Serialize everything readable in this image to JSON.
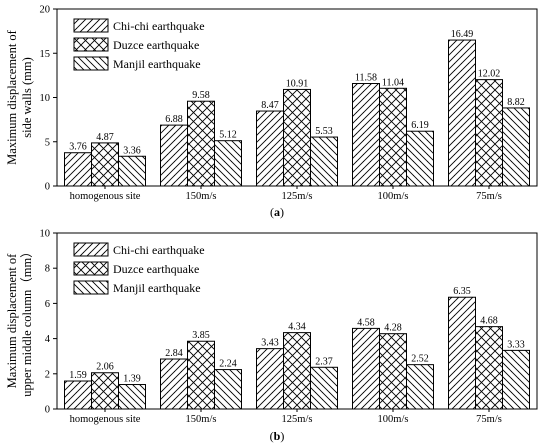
{
  "chart_data": [
    {
      "type": "bar",
      "subtitle": "(a)",
      "ylabel_lines": [
        "Maximum displacement of",
        "side walls (mm)"
      ],
      "ylim": [
        0,
        20
      ],
      "yticks": [
        0,
        5,
        10,
        15,
        20
      ],
      "categories": [
        "homogenous site",
        "150m/s",
        "125m/s",
        "100m/s",
        "75m/s"
      ],
      "series": [
        {
          "name": "Chi-chi earthquake",
          "pattern": "diag-forward",
          "values": [
            3.76,
            6.88,
            8.47,
            11.58,
            16.49
          ]
        },
        {
          "name": "Duzce earthquake",
          "pattern": "cross",
          "values": [
            4.87,
            9.58,
            10.91,
            11.04,
            12.02
          ]
        },
        {
          "name": "Manjil earthquake",
          "pattern": "diag-back",
          "values": [
            3.36,
            5.12,
            5.53,
            6.19,
            8.82
          ]
        }
      ],
      "legend_position": "top-left",
      "grid": false
    },
    {
      "type": "bar",
      "subtitle": "(b)",
      "ylabel_lines": [
        "Maximum displacement of",
        "upper middle column（mm）"
      ],
      "ylim": [
        0,
        10
      ],
      "yticks": [
        0,
        2,
        4,
        6,
        8,
        10
      ],
      "categories": [
        "homogenous site",
        "150m/s",
        "125m/s",
        "100m/s",
        "75m/s"
      ],
      "series": [
        {
          "name": "Chi-chi earthquake",
          "pattern": "diag-forward",
          "values": [
            1.59,
            2.84,
            3.43,
            4.58,
            6.35
          ]
        },
        {
          "name": "Duzce earthquake",
          "pattern": "cross",
          "values": [
            2.06,
            3.85,
            4.34,
            4.28,
            4.68
          ]
        },
        {
          "name": "Manjil earthquake",
          "pattern": "diag-back",
          "values": [
            1.39,
            2.24,
            2.37,
            2.52,
            3.33
          ]
        }
      ],
      "legend_position": "top-left",
      "grid": false
    }
  ]
}
